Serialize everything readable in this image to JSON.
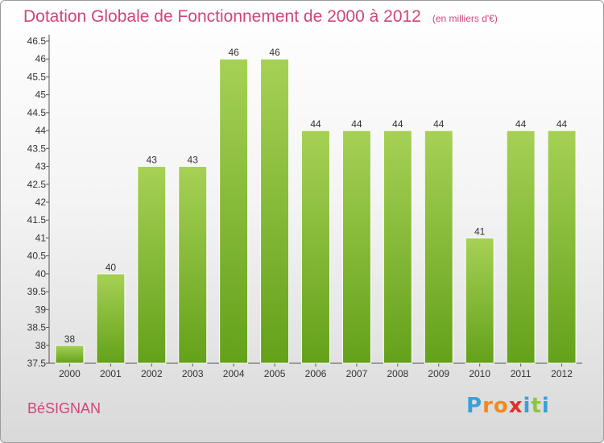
{
  "title": "Dotation Globale de Fonctionnement de 2000 à 2012",
  "unit": "(en milliers d'€)",
  "commune": "BéSIGNAN",
  "brand": {
    "letters": [
      "P",
      "r",
      "o",
      "x",
      "i",
      "t",
      "i"
    ],
    "colors": [
      "#3aa0d8",
      "#f08a1c",
      "#f08a1c",
      "#e0302f",
      "#3aa0d8",
      "#8cc63f",
      "#3aa0d8"
    ]
  },
  "colors": {
    "title": "#d0457a",
    "bar_top": "#a6d155",
    "bar_bottom": "#64a11a",
    "axis": "#555555"
  },
  "chart_data": {
    "type": "bar",
    "categories": [
      "2000",
      "2001",
      "2002",
      "2003",
      "2004",
      "2005",
      "2006",
      "2007",
      "2008",
      "2009",
      "2010",
      "2011",
      "2012"
    ],
    "values": [
      38,
      40,
      43,
      43,
      46,
      46,
      44,
      44,
      44,
      44,
      41,
      44,
      44
    ],
    "data_labels": [
      "38",
      "40",
      "43",
      "43",
      "46",
      "46",
      "44",
      "44",
      "44",
      "44",
      "41",
      "44",
      "44"
    ],
    "y_ticks": [
      "37.5",
      "38",
      "38.5",
      "39",
      "39.5",
      "40",
      "40.5",
      "41",
      "41.5",
      "42",
      "42.5",
      "43",
      "43.5",
      "44",
      "44.5",
      "45",
      "45.5",
      "46",
      "46.5"
    ],
    "ylim": [
      37.5,
      46.5
    ],
    "grid": false
  }
}
